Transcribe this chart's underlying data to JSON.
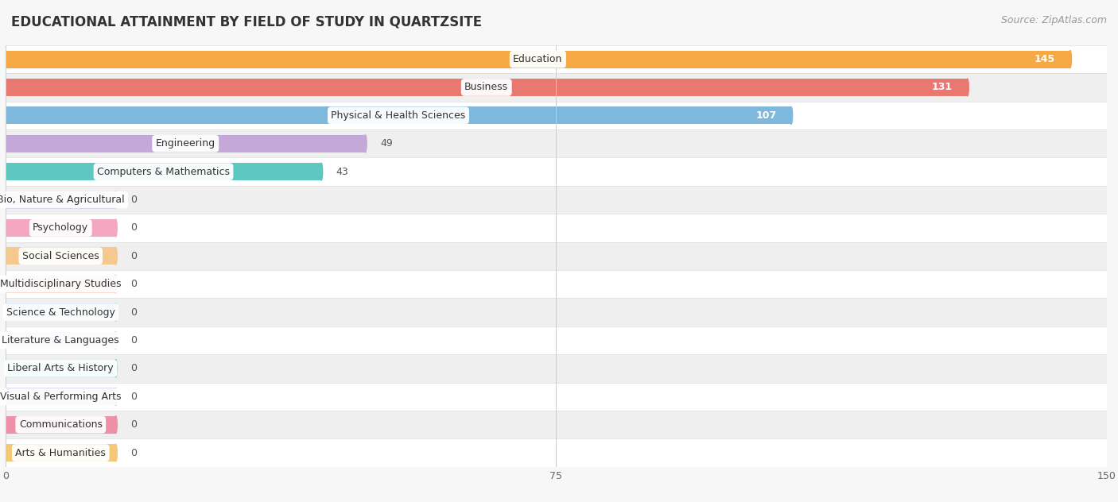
{
  "title": "EDUCATIONAL ATTAINMENT BY FIELD OF STUDY IN QUARTZSITE",
  "source": "Source: ZipAtlas.com",
  "categories": [
    "Education",
    "Business",
    "Physical & Health Sciences",
    "Engineering",
    "Computers & Mathematics",
    "Bio, Nature & Agricultural",
    "Psychology",
    "Social Sciences",
    "Multidisciplinary Studies",
    "Science & Technology",
    "Literature & Languages",
    "Liberal Arts & History",
    "Visual & Performing Arts",
    "Communications",
    "Arts & Humanities"
  ],
  "values": [
    145,
    131,
    107,
    49,
    43,
    0,
    0,
    0,
    0,
    0,
    0,
    0,
    0,
    0,
    0
  ],
  "bar_colors": [
    "#F5A843",
    "#E87870",
    "#7EB8DC",
    "#C4A8D8",
    "#5EC8C0",
    "#B8C0EC",
    "#F4A8C0",
    "#F5C890",
    "#F0A898",
    "#98C0E8",
    "#C8A8DC",
    "#6DCEC8",
    "#B0B0EC",
    "#F090A8",
    "#F5C878"
  ],
  "xlim": [
    0,
    150
  ],
  "xticks": [
    0,
    75,
    150
  ],
  "background_color": "#f7f7f7",
  "row_bg_even": "#ffffff",
  "row_bg_odd": "#efefef",
  "bar_height": 0.62,
  "min_bar_display": 15,
  "title_fontsize": 12,
  "source_fontsize": 9,
  "label_fontsize": 9,
  "value_fontsize": 9
}
